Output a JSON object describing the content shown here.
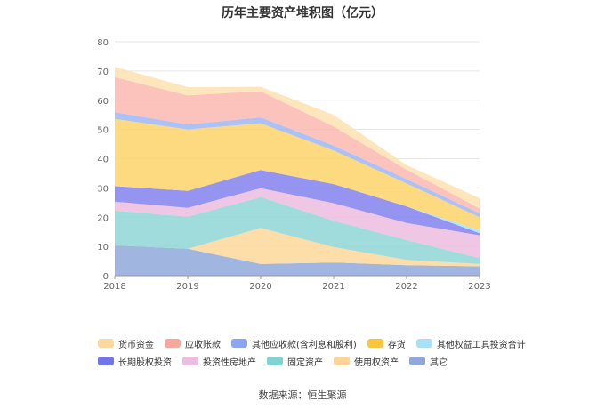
{
  "chart_data": {
    "type": "area",
    "stacked": true,
    "title": "历年主要资产堆积图（亿元）",
    "xlabel": "",
    "ylabel": "",
    "x": [
      "2018",
      "2019",
      "2020",
      "2021",
      "2022",
      "2023"
    ],
    "ylim": [
      0,
      80
    ],
    "yticks": [
      "0",
      "10",
      "20",
      "30",
      "40",
      "50",
      "60",
      "70",
      "80"
    ],
    "grid": true,
    "legend_position": "bottom",
    "series": [
      {
        "name": "其它",
        "color": "#8fa8d9",
        "values": [
          10.3,
          9.2,
          4.0,
          4.5,
          3.6,
          3.2
        ]
      },
      {
        "name": "使用权资产",
        "color": "#fdd89a",
        "values": [
          0.0,
          0.0,
          12.3,
          5.3,
          1.8,
          0.8
        ]
      },
      {
        "name": "固定资产",
        "color": "#8fd6d6",
        "values": [
          12.0,
          11.0,
          10.6,
          9.0,
          6.8,
          2.0
        ]
      },
      {
        "name": "投资性房地产",
        "color": "#ecbde0",
        "values": [
          3.0,
          3.0,
          3.0,
          6.0,
          5.8,
          7.8
        ]
      },
      {
        "name": "长期股权投资",
        "color": "#8282ee",
        "values": [
          5.3,
          5.8,
          6.2,
          6.5,
          5.7,
          0.7
        ]
      },
      {
        "name": "其他权益工具投资合计",
        "color": "#a8e0f7",
        "values": [
          0.0,
          0.0,
          0.0,
          0.0,
          0.0,
          1.0
        ]
      },
      {
        "name": "存货",
        "color": "#fdd46a",
        "values": [
          23.0,
          21.0,
          16.0,
          11.5,
          7.8,
          4.5
        ]
      },
      {
        "name": "其他应收款(含利息和股利)",
        "color": "#9db6f5",
        "values": [
          2.3,
          1.7,
          2.0,
          1.7,
          1.5,
          1.3
        ]
      },
      {
        "name": "应收账款",
        "color": "#fbb9b2",
        "values": [
          12.0,
          10.0,
          9.0,
          6.5,
          3.3,
          1.7
        ]
      },
      {
        "name": "货币资金",
        "color": "#fde2b0",
        "values": [
          3.5,
          2.8,
          1.5,
          4.0,
          1.5,
          3.5
        ]
      }
    ]
  },
  "legend": {
    "row1": [
      {
        "label": "货币资金",
        "color": "#fdd89a"
      },
      {
        "label": "应收账款",
        "color": "#f8a79d"
      },
      {
        "label": "其他应收款(含利息和股利)",
        "color": "#8aa6f2"
      },
      {
        "label": "存货",
        "color": "#fbc43c"
      },
      {
        "label": "其他权益工具投资合计",
        "color": "#a8e0f7"
      }
    ],
    "row2": [
      {
        "label": "长期股权投资",
        "color": "#7373ec"
      },
      {
        "label": "投资性房地产",
        "color": "#ecbde0"
      },
      {
        "label": "固定资产",
        "color": "#7fd3d3"
      },
      {
        "label": "使用权资产",
        "color": "#fdd39a"
      },
      {
        "label": "其它",
        "color": "#8fa8d9"
      }
    ]
  },
  "source": "数据来源：恒生聚源"
}
